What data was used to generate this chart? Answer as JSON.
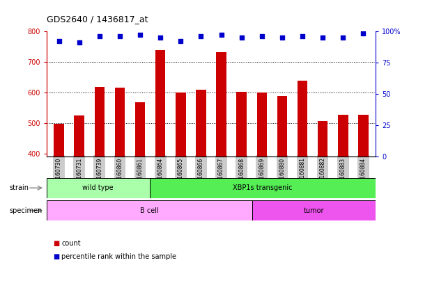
{
  "title": "GDS2640 / 1436817_at",
  "samples": [
    "GSM160730",
    "GSM160731",
    "GSM160739",
    "GSM160860",
    "GSM160861",
    "GSM160864",
    "GSM160865",
    "GSM160866",
    "GSM160867",
    "GSM160868",
    "GSM160869",
    "GSM160880",
    "GSM160881",
    "GSM160882",
    "GSM160883",
    "GSM160884"
  ],
  "counts": [
    497,
    523,
    617,
    614,
    568,
    738,
    600,
    609,
    731,
    602,
    600,
    588,
    638,
    507,
    527,
    527
  ],
  "percentiles": [
    92,
    91,
    96,
    96,
    97,
    95,
    92,
    96,
    97,
    95,
    96,
    95,
    96,
    95,
    95,
    98
  ],
  "ylim_left": [
    390,
    800
  ],
  "ylim_right": [
    0,
    100
  ],
  "yticks_left": [
    400,
    500,
    600,
    700,
    800
  ],
  "yticks_right": [
    0,
    25,
    50,
    75,
    100
  ],
  "bar_color": "#cc0000",
  "dot_color": "#0000cc",
  "grid_lines": [
    500,
    600,
    700
  ],
  "strain_groups": [
    {
      "label": "wild type",
      "start": 0,
      "end": 5,
      "color": "#aaffaa"
    },
    {
      "label": "XBP1s transgenic",
      "start": 5,
      "end": 16,
      "color": "#55ee55"
    }
  ],
  "specimen_groups": [
    {
      "label": "B cell",
      "start": 0,
      "end": 10,
      "color": "#ffaaff"
    },
    {
      "label": "tumor",
      "start": 10,
      "end": 16,
      "color": "#ee55ee"
    }
  ],
  "strain_label": "strain",
  "specimen_label": "specimen",
  "legend_count_label": "count",
  "legend_percentile_label": "percentile rank within the sample",
  "tick_bg_color": "#cccccc",
  "left_axis_color": "#cc0000",
  "right_axis_color": "#0000cc",
  "bar_bottom": 390,
  "n_samples": 16
}
